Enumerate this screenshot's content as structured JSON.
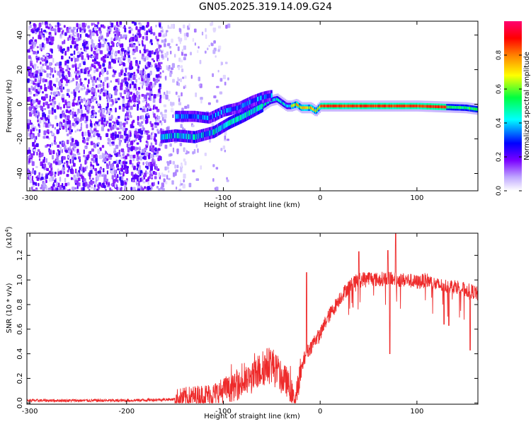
{
  "title": "GN05.2025.319.14.09.G24",
  "chart_data": [
    {
      "type": "heatmap",
      "title": "GN05.2025.319.14.09.G24",
      "xlabel": "Height of straight line (km)",
      "ylabel": "Frequency (Hz)",
      "xlim": [
        -303,
        163
      ],
      "ylim": [
        -50,
        48
      ],
      "xticks": [
        -300,
        -200,
        -100,
        0,
        100
      ],
      "yticks": [
        -40,
        -20,
        0,
        20,
        40
      ],
      "colorbar": {
        "label": "Normalized spectral amplitude",
        "range": [
          0,
          1
        ],
        "ticks": [
          "0.0",
          "0.2",
          "0.4",
          "0.6",
          "0.8"
        ],
        "colors": [
          "#ffffff",
          "#b8a0ff",
          "#7a00ff",
          "#0000ff",
          "#00ffff",
          "#00ff40",
          "#ffff00",
          "#ff8000",
          "#ff0000",
          "#ff0070"
        ]
      },
      "ridge": {
        "x": [
          -165,
          -150,
          -130,
          -110,
          -95,
          -80,
          -70,
          -60,
          -52,
          -45,
          -40,
          -35,
          -30,
          -25,
          -20,
          -15,
          -10,
          -5,
          0,
          20,
          50,
          100,
          150,
          163
        ],
        "freq": [
          -19,
          -18,
          -19,
          -16,
          -11,
          -7,
          -4,
          -1,
          2,
          3,
          1,
          -1,
          -1,
          0,
          -2,
          -2,
          -2,
          -4,
          -1,
          -1,
          -1,
          -1,
          -2,
          -3
        ]
      },
      "ridge2": {
        "x": [
          -148,
          -130,
          -115,
          -100,
          -85,
          -70,
          -60,
          -52
        ],
        "freq": [
          -7,
          -7,
          -8,
          -4,
          -2,
          2,
          4,
          5
        ]
      },
      "ridge2_xrange": [
        -150,
        -50
      ]
    },
    {
      "type": "line",
      "xlabel": "Height of straight line (km)",
      "ylabel": "SNR (10 * v/v)",
      "yscale_label": "(x10",
      "yscale_exp": "4",
      "xlim": [
        -303,
        163
      ],
      "ylim": [
        -0.01,
        1.38
      ],
      "xticks": [
        -300,
        -200,
        -100,
        0,
        100
      ],
      "yticks": [
        "0.0",
        "0.2",
        "0.4",
        "0.6",
        "0.8",
        "1.0",
        "1.2"
      ],
      "color": "#ee2a2a",
      "series": [
        {
          "x": [
            -303,
            -250,
            -200,
            -150,
            -130,
            -110,
            -100,
            -90,
            -80,
            -70,
            -60,
            -55,
            -50,
            -45,
            -40,
            -35,
            -30,
            -27,
            -25,
            -20,
            -15,
            -10,
            -5,
            0,
            5,
            10,
            15,
            20,
            25,
            30,
            40,
            50,
            60,
            70,
            80,
            90,
            100,
            110,
            120,
            130,
            140,
            150,
            160,
            163
          ],
          "values": [
            0.02,
            0.02,
            0.02,
            0.03,
            0.05,
            0.07,
            0.1,
            0.12,
            0.16,
            0.2,
            0.28,
            0.3,
            0.32,
            0.25,
            0.2,
            0.18,
            0.1,
            0.02,
            0.05,
            0.25,
            0.4,
            0.45,
            0.52,
            0.55,
            0.65,
            0.72,
            0.78,
            0.85,
            0.9,
            0.95,
            1.0,
            1.02,
            1.0,
            1.02,
            1.0,
            1.0,
            0.98,
            1.0,
            0.96,
            0.95,
            0.95,
            0.92,
            0.9,
            0.88
          ]
        }
      ],
      "spikes": [
        {
          "x": -14,
          "value": 1.06
        },
        {
          "x": 40,
          "value": 1.23
        },
        {
          "x": 70,
          "value": 1.24
        },
        {
          "x": 78,
          "value": 1.38
        },
        {
          "x": 72,
          "value": 0.4
        },
        {
          "x": 128,
          "value": 0.64
        },
        {
          "x": 133,
          "value": 0.63
        },
        {
          "x": 155,
          "value": 0.43
        }
      ]
    }
  ]
}
